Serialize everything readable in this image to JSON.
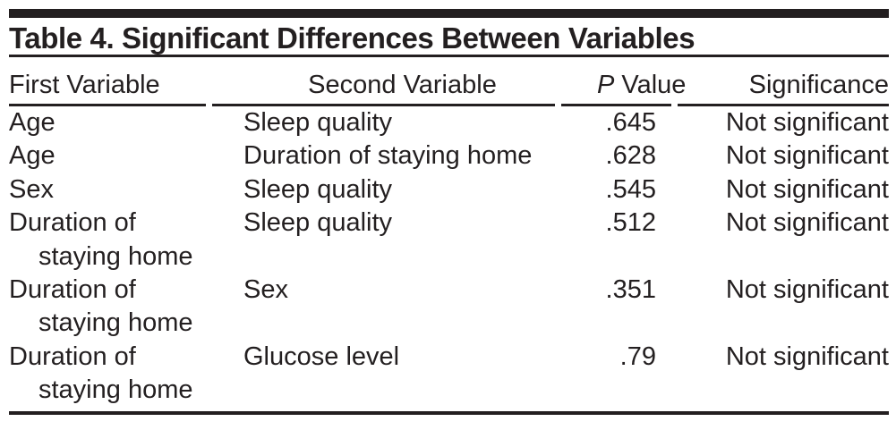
{
  "colors": {
    "ink": "#231f20",
    "background": "#ffffff"
  },
  "table": {
    "caption": "Table 4. Significant Differences Between Variables",
    "header": {
      "first": "First Variable",
      "second": "Second Variable",
      "p_italic": "P",
      "p_rest": " Value",
      "significance": "Significance"
    },
    "rows": [
      {
        "first": "Age",
        "second": "Sleep quality",
        "p": ".645",
        "sig": "Not significant"
      },
      {
        "first": "Age",
        "second": "Duration of staying home",
        "p": ".628",
        "sig": "Not significant"
      },
      {
        "first": "Sex",
        "second": "Sleep quality",
        "p": ".545",
        "sig": "Not significant"
      },
      {
        "first": "Duration of staying home",
        "second": "Sleep quality",
        "p": ".512",
        "sig": "Not significant"
      },
      {
        "first": "Duration of staying home",
        "second": "Sex",
        "p": ".351",
        "sig": "Not significant"
      },
      {
        "first": "Duration of staying home",
        "second": "Glucose level",
        "p": ".79",
        "sig": "Not significant"
      }
    ]
  }
}
